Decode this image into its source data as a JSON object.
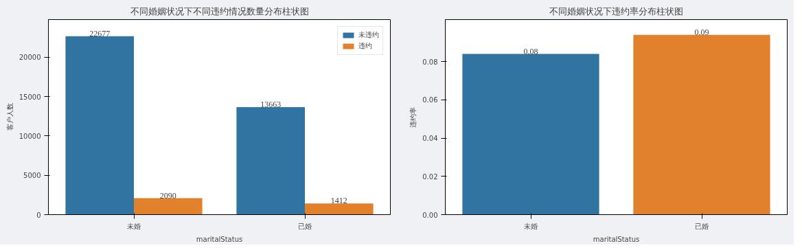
{
  "chart_data": [
    {
      "type": "bar",
      "title": "不同婚姻状况下不同违约情况数量分布柱状图",
      "xlabel": "maritalStatus",
      "ylabel": "客户人数",
      "categories": [
        "未婚",
        "已婚"
      ],
      "series": [
        {
          "name": "未违约",
          "color": "#3274a1",
          "values": [
            22677,
            13663
          ]
        },
        {
          "name": "违约",
          "color": "#e1812c",
          "values": [
            2090,
            1412
          ]
        }
      ],
      "ylim": [
        0,
        24800
      ],
      "yticks": [
        0,
        5000,
        10000,
        15000,
        20000
      ],
      "data_labels": true,
      "legend": "top right",
      "grid": false
    },
    {
      "type": "bar",
      "title": "不同婚姻状况下违约率分布柱状图",
      "xlabel": "maritalStatus",
      "ylabel": "违约率",
      "categories": [
        "未婚",
        "已婚"
      ],
      "values": [
        0.084,
        0.094
      ],
      "colors": [
        "#3274a1",
        "#e1812c"
      ],
      "value_labels": [
        "0.08",
        "0.09"
      ],
      "ylim": [
        0,
        0.102
      ],
      "yticks": [
        {
          "value": 0,
          "label": "0.00"
        },
        {
          "value": 0.02,
          "label": "0.02"
        },
        {
          "value": 0.04,
          "label": "0.04"
        },
        {
          "value": 0.06,
          "label": "0.06"
        },
        {
          "value": 0.08,
          "label": "0.08"
        }
      ],
      "grid": false
    }
  ]
}
